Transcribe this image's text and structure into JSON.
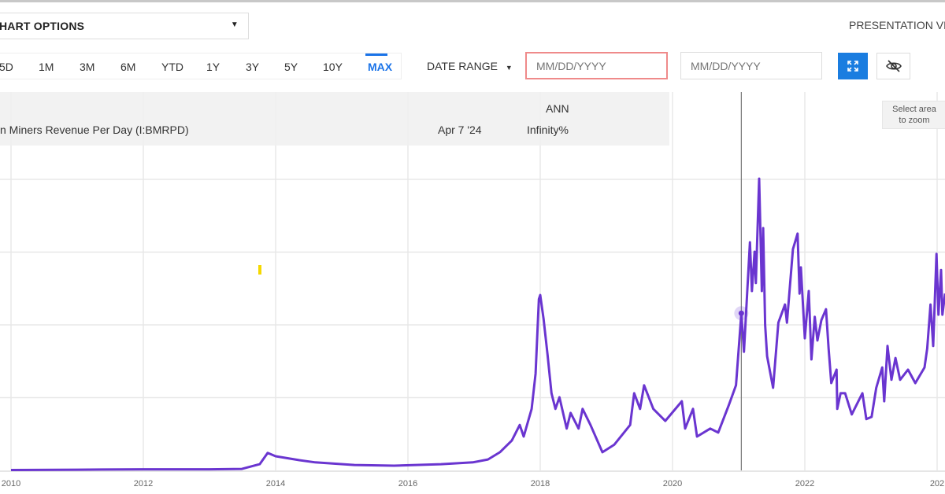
{
  "toolbar": {
    "chart_options_label": "HART OPTIONS",
    "presentation_view_label": "PRESENTATION VIE",
    "ranges": [
      "5D",
      "1M",
      "3M",
      "6M",
      "YTD",
      "1Y",
      "3Y",
      "5Y",
      "10Y",
      "MAX"
    ],
    "active_range": "MAX",
    "date_range_label": "DATE RANGE",
    "start_date": {
      "value": "",
      "placeholder": "MM/DD/YYYY"
    },
    "end_date": {
      "value": "",
      "placeholder": "MM/DD/YYYY"
    },
    "fullscreen_icon": "expand-arrows-icon",
    "hide_icon": "eye-slash-icon",
    "accent_color": "#1a7de0"
  },
  "legend": {
    "column_header": "ANN",
    "series_name": "n Miners Revenue Per Day (I:BMRPD)",
    "date": "Apr 7 '24",
    "value": "Infinity%"
  },
  "tooltip": {
    "line1": "Select area",
    "line2": "to zoom"
  },
  "chart_data": {
    "type": "line",
    "series_color": "#6a35d0",
    "grid": true,
    "x_tick_labels": [
      "2010",
      "2012",
      "2014",
      "2016",
      "2018",
      "2020",
      "2022",
      "202"
    ],
    "xlim": [
      2010,
      2024
    ],
    "ylim": [
      0,
      80
    ],
    "hover_x": 2021.04,
    "series": [
      {
        "points": [
          [
            2010.0,
            0.1
          ],
          [
            2011.0,
            0.2
          ],
          [
            2012.0,
            0.3
          ],
          [
            2013.0,
            0.3
          ],
          [
            2013.49,
            0.4
          ],
          [
            2013.76,
            1.7
          ],
          [
            2013.88,
            4.8
          ],
          [
            2014.0,
            3.9
          ],
          [
            2014.36,
            2.8
          ],
          [
            2014.6,
            2.2
          ],
          [
            2015.19,
            1.5
          ],
          [
            2015.79,
            1.3
          ],
          [
            2016.5,
            1.7
          ],
          [
            2016.98,
            2.2
          ],
          [
            2017.21,
            3.0
          ],
          [
            2017.39,
            5.0
          ],
          [
            2017.57,
            8.2
          ],
          [
            2017.69,
            12.5
          ],
          [
            2017.75,
            9.3
          ],
          [
            2017.87,
            16.9
          ],
          [
            2017.93,
            26.6
          ],
          [
            2017.98,
            47.1
          ],
          [
            2018.0,
            48.2
          ],
          [
            2018.05,
            41.7
          ],
          [
            2018.11,
            32.0
          ],
          [
            2018.17,
            21.2
          ],
          [
            2018.23,
            16.9
          ],
          [
            2018.29,
            20.1
          ],
          [
            2018.4,
            11.5
          ],
          [
            2018.46,
            15.8
          ],
          [
            2018.58,
            11.5
          ],
          [
            2018.64,
            16.9
          ],
          [
            2018.76,
            12.5
          ],
          [
            2018.94,
            5.0
          ],
          [
            2019.12,
            7.1
          ],
          [
            2019.36,
            12.5
          ],
          [
            2019.42,
            21.2
          ],
          [
            2019.51,
            16.9
          ],
          [
            2019.57,
            23.4
          ],
          [
            2019.71,
            16.9
          ],
          [
            2019.89,
            13.6
          ],
          [
            2020.14,
            19.0
          ],
          [
            2020.19,
            11.5
          ],
          [
            2020.31,
            16.9
          ],
          [
            2020.37,
            9.3
          ],
          [
            2020.57,
            11.5
          ],
          [
            2020.69,
            10.4
          ],
          [
            2020.85,
            17.9
          ],
          [
            2020.96,
            23.4
          ],
          [
            2021.04,
            43.2
          ],
          [
            2021.08,
            32.6
          ],
          [
            2021.17,
            62.7
          ],
          [
            2021.2,
            49.3
          ],
          [
            2021.24,
            60.1
          ],
          [
            2021.26,
            51.5
          ],
          [
            2021.31,
            80.2
          ],
          [
            2021.35,
            49.3
          ],
          [
            2021.37,
            66.6
          ],
          [
            2021.4,
            40.0
          ],
          [
            2021.43,
            31.4
          ],
          [
            2021.52,
            22.7
          ],
          [
            2021.6,
            40.6
          ],
          [
            2021.7,
            45.6
          ],
          [
            2021.73,
            40.6
          ],
          [
            2021.82,
            60.8
          ],
          [
            2021.89,
            65.1
          ],
          [
            2021.92,
            48.6
          ],
          [
            2021.94,
            55.8
          ],
          [
            2022.0,
            36.3
          ],
          [
            2022.06,
            49.3
          ],
          [
            2022.1,
            30.5
          ],
          [
            2022.15,
            42.2
          ],
          [
            2022.19,
            35.7
          ],
          [
            2022.25,
            41.3
          ],
          [
            2022.32,
            44.3
          ],
          [
            2022.36,
            33.5
          ],
          [
            2022.4,
            24.0
          ],
          [
            2022.48,
            27.7
          ],
          [
            2022.49,
            16.9
          ],
          [
            2022.54,
            21.2
          ],
          [
            2022.61,
            21.2
          ],
          [
            2022.71,
            15.4
          ],
          [
            2022.87,
            21.2
          ],
          [
            2022.93,
            14.1
          ],
          [
            2023.01,
            14.7
          ],
          [
            2023.08,
            22.7
          ],
          [
            2023.17,
            28.3
          ],
          [
            2023.2,
            19.0
          ],
          [
            2023.25,
            34.2
          ],
          [
            2023.31,
            24.9
          ],
          [
            2023.37,
            30.9
          ],
          [
            2023.44,
            24.9
          ],
          [
            2023.56,
            27.7
          ],
          [
            2023.67,
            24.0
          ],
          [
            2023.81,
            28.3
          ],
          [
            2023.85,
            33.5
          ],
          [
            2023.9,
            45.6
          ],
          [
            2023.94,
            34.2
          ],
          [
            2023.99,
            59.5
          ],
          [
            2024.02,
            42.8
          ],
          [
            2024.06,
            55.1
          ],
          [
            2024.08,
            42.8
          ],
          [
            2024.12,
            48.6
          ]
        ]
      }
    ]
  }
}
